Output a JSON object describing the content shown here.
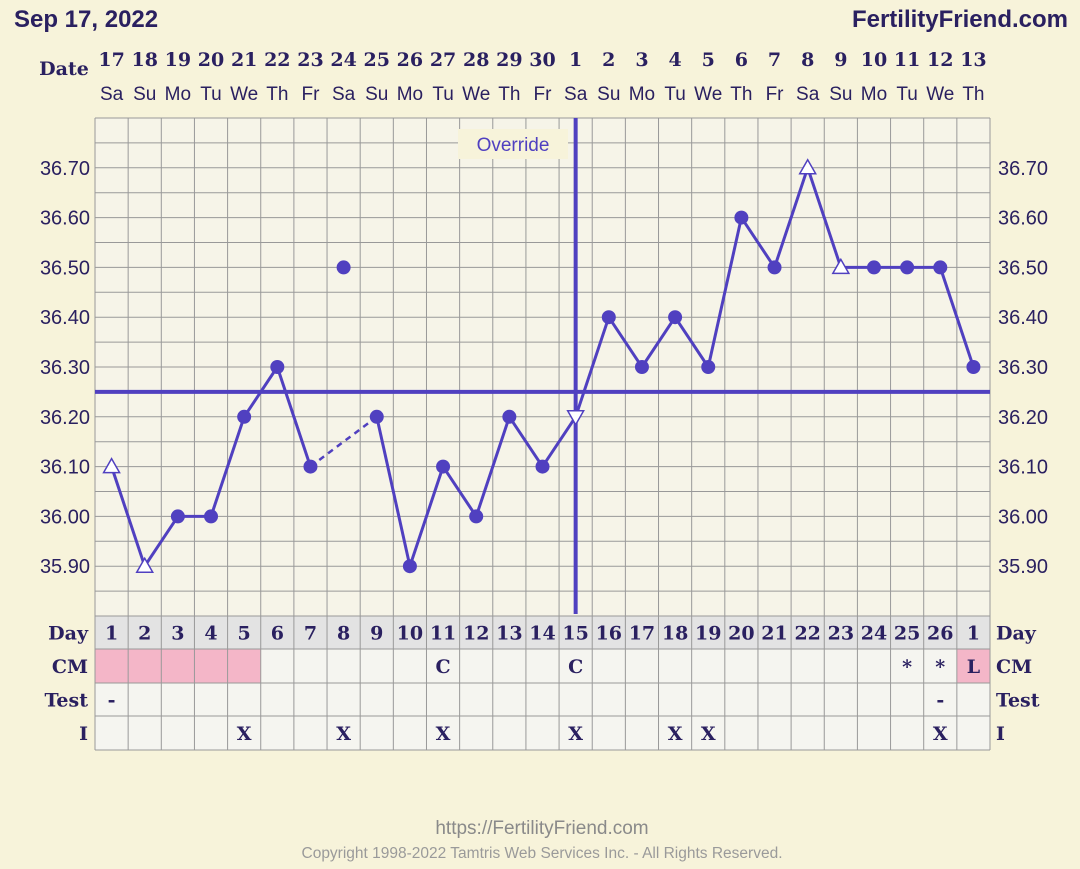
{
  "header": {
    "date": "Sep 17, 2022",
    "brand": "FertilityFriend.com",
    "date_label": "Date"
  },
  "override_label": "Override",
  "footer": {
    "url": "https://FertilityFriend.com",
    "copyright": "Copyright 1998-2022 Tamtris Web Services Inc. - All Rights Reserved."
  },
  "colors": {
    "line": "#5040c0",
    "grid": "#999999",
    "background": "#f7f3da",
    "pink": "#f4b6c8",
    "text": "#2a2060"
  },
  "chart_data": {
    "type": "line",
    "dates": [
      "17",
      "18",
      "19",
      "20",
      "21",
      "22",
      "23",
      "24",
      "25",
      "26",
      "27",
      "28",
      "29",
      "30",
      "1",
      "2",
      "3",
      "4",
      "5",
      "6",
      "7",
      "8",
      "9",
      "10",
      "11",
      "12",
      "13"
    ],
    "weekdays": [
      "Sa",
      "Su",
      "Mo",
      "Tu",
      "We",
      "Th",
      "Fr",
      "Sa",
      "Su",
      "Mo",
      "Tu",
      "We",
      "Th",
      "Fr",
      "Sa",
      "Su",
      "Mo",
      "Tu",
      "We",
      "Th",
      "Fr",
      "Sa",
      "Su",
      "Mo",
      "Tu",
      "We",
      "Th"
    ],
    "cycle_days": [
      "1",
      "2",
      "3",
      "4",
      "5",
      "6",
      "7",
      "8",
      "9",
      "10",
      "11",
      "12",
      "13",
      "14",
      "15",
      "16",
      "17",
      "18",
      "19",
      "20",
      "21",
      "22",
      "23",
      "24",
      "25",
      "26",
      "1"
    ],
    "y_ticks": [
      "36.70",
      "36.60",
      "36.50",
      "36.40",
      "36.30",
      "36.20",
      "36.10",
      "36.00",
      "35.90"
    ],
    "ylim": [
      35.83,
      36.8
    ],
    "temps": [
      36.1,
      35.9,
      36.0,
      36.0,
      36.2,
      36.3,
      36.1,
      36.5,
      36.2,
      35.9,
      36.1,
      36.0,
      36.2,
      36.1,
      36.2,
      36.4,
      36.3,
      36.4,
      36.3,
      36.6,
      36.5,
      36.7,
      36.5,
      36.5,
      36.5,
      36.5,
      36.3
    ],
    "markers": [
      "tri",
      "tri",
      "dot",
      "dot",
      "dot",
      "dot",
      "dot",
      "dot",
      "dot",
      "dot",
      "dot",
      "dot",
      "dot",
      "dot",
      "tri-down",
      "dot",
      "dot",
      "dot",
      "dot",
      "dot",
      "dot",
      "tri",
      "tri",
      "dot",
      "dot",
      "dot",
      "dot"
    ],
    "discarded_index": 7,
    "coverline": 36.25,
    "ovulation_index": 14,
    "rows": {
      "day_label": "Day",
      "cm_label": "CM",
      "test_label": "Test",
      "i_label": "I",
      "cm": [
        "",
        "",
        "",
        "",
        "",
        "",
        "",
        "",
        "",
        "",
        "C",
        "",
        "",
        "",
        "C",
        "",
        "",
        "",
        "",
        "",
        "",
        "",
        "",
        "",
        "*",
        "*",
        "L"
      ],
      "cm_pink": [
        true,
        true,
        true,
        true,
        true,
        false,
        false,
        false,
        false,
        false,
        false,
        false,
        false,
        false,
        false,
        false,
        false,
        false,
        false,
        false,
        false,
        false,
        false,
        false,
        false,
        false,
        true
      ],
      "test": [
        "-",
        "",
        "",
        "",
        "",
        "",
        "",
        "",
        "",
        "",
        "",
        "",
        "",
        "",
        "",
        "",
        "",
        "",
        "",
        "",
        "",
        "",
        "",
        "",
        "",
        "-",
        ""
      ],
      "intercourse": [
        "",
        "",
        "",
        "",
        "X",
        "",
        "",
        "X",
        "",
        "",
        "X",
        "",
        "",
        "",
        "X",
        "",
        "",
        "X",
        "X",
        "",
        "",
        "",
        "",
        "",
        "",
        "X",
        ""
      ]
    }
  }
}
